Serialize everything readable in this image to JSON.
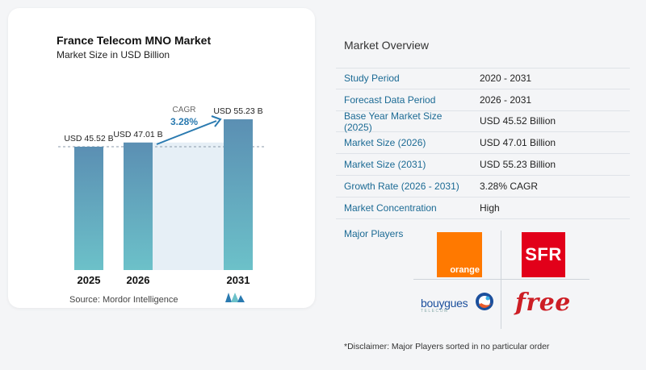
{
  "chart": {
    "title": "France Telecom MNO Market",
    "subtitle": "Market Size in USD Billion",
    "source": "Source:  Mordor Intelligence",
    "cagr_label": "CAGR",
    "cagr_value": "3.28%"
  },
  "chart_data": {
    "type": "bar",
    "categories": [
      "2025",
      "2026",
      "2031"
    ],
    "values": [
      45.52,
      47.01,
      55.23
    ],
    "value_labels": [
      "USD 45.52 B",
      "USD 47.01 B",
      "USD 55.23 B"
    ],
    "title": "France Telecom MNO Market",
    "subtitle": "Market Size in USD Billion",
    "xlabel": "",
    "ylabel": "",
    "annotation": "CAGR 3.28%",
    "grid": false,
    "colors": {
      "bar_top": "#5b8fb3",
      "bar_bottom": "#6cc1c9",
      "accent": "#2a7ab0",
      "band": "#dde9f3"
    }
  },
  "overview": {
    "title": "Market Overview",
    "rows": [
      {
        "label": "Study Period",
        "value": "2020 - 2031"
      },
      {
        "label": "Forecast Data Period",
        "value": "2026 - 2031"
      },
      {
        "label": "Base Year Market Size (2025)",
        "value": "USD 45.52 Billion"
      },
      {
        "label": "Market Size (2026)",
        "value": "USD 47.01 Billion"
      },
      {
        "label": "Market Size (2031)",
        "value": "USD 55.23 Billion"
      },
      {
        "label": "Growth Rate (2026 - 2031)",
        "value": "3.28% CAGR"
      },
      {
        "label": "Market Concentration",
        "value": "High"
      }
    ],
    "players_label": "Major Players",
    "players": {
      "orange": "orange",
      "sfr": "SFR",
      "bouygues": "bouygues",
      "bouygues_sub": "TELECOM",
      "free": "free"
    },
    "disclaimer": "*Disclaimer: Major Players sorted in no particular order"
  }
}
